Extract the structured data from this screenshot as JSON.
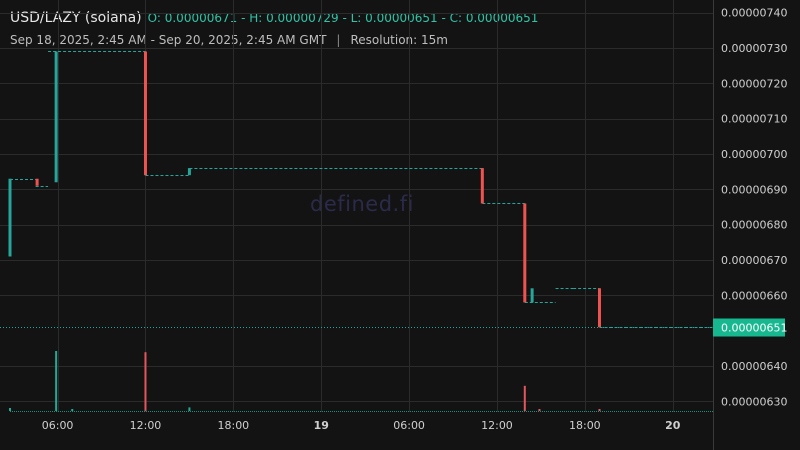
{
  "header": {
    "symbol": "USD/LAZY (solana)",
    "ohlc": "O: 0.00000671 - H: 0.00000729 - L: 0.00000651 - C: 0.00000651",
    "range": "Sep 18, 2025, 2:45 AM - Sep 20, 2025, 2:45 AM GMT",
    "separator": "|",
    "resolution": "Resolution: 15m"
  },
  "watermark": "defined.fi",
  "colors": {
    "background": "#131313",
    "grid": "#2b2b2b",
    "up": "#26a69a",
    "down": "#ef5350",
    "price_tag": "#17b890",
    "volume_up": "#22ab94",
    "volume_down": "#e45560"
  },
  "chart_data": {
    "type": "candlestick",
    "y_axis_position": "right",
    "ylim": [
      6.27e-06,
      7.43e-06
    ],
    "y_ticks": [
      {
        "value": 7.4e-06,
        "label": "0.00000740"
      },
      {
        "value": 7.3e-06,
        "label": "0.00000730"
      },
      {
        "value": 7.2e-06,
        "label": "0.00000720"
      },
      {
        "value": 7.1e-06,
        "label": "0.00000710"
      },
      {
        "value": 7e-06,
        "label": "0.00000700"
      },
      {
        "value": 6.9e-06,
        "label": "0.00000690"
      },
      {
        "value": 6.8e-06,
        "label": "0.00000680"
      },
      {
        "value": 6.7e-06,
        "label": "0.00000670"
      },
      {
        "value": 6.6e-06,
        "label": "0.00000660"
      },
      {
        "value": 6.4e-06,
        "label": "0.00000640"
      },
      {
        "value": 6.3e-06,
        "label": "0.00000630"
      }
    ],
    "x_range_hours": [
      2.75,
      50.75
    ],
    "x_ticks": [
      {
        "hour": 6,
        "label": "06:00",
        "bold": false
      },
      {
        "hour": 12,
        "label": "12:00",
        "bold": false
      },
      {
        "hour": 18,
        "label": "18:00",
        "bold": false
      },
      {
        "hour": 24,
        "label": "19",
        "bold": true
      },
      {
        "hour": 30,
        "label": "06:00",
        "bold": false
      },
      {
        "hour": 36,
        "label": "12:00",
        "bold": false
      },
      {
        "hour": 42,
        "label": "18:00",
        "bold": false
      },
      {
        "hour": 48,
        "label": "20",
        "bold": true
      }
    ],
    "segments": [
      {
        "from": 2.75,
        "to": 4.5,
        "level": 6.93e-06
      },
      {
        "from": 4.5,
        "to": 5.35,
        "level": 6.91e-06
      },
      {
        "from": 5.35,
        "to": 12.0,
        "level": 7.29e-06
      },
      {
        "from": 12.0,
        "to": 15.0,
        "level": 6.94e-06
      },
      {
        "from": 15.0,
        "to": 35.0,
        "level": 6.96e-06
      },
      {
        "from": 35.0,
        "to": 37.9,
        "level": 6.86e-06
      },
      {
        "from": 37.9,
        "to": 40.0,
        "level": 6.58e-06
      },
      {
        "from": 40.0,
        "to": 41.2,
        "level": 6.62e-06
      },
      {
        "from": 41.2,
        "to": 43.0,
        "level": 6.62e-06
      },
      {
        "from": 43.0,
        "to": 50.75,
        "level": 6.51e-06
      }
    ],
    "candles": [
      {
        "t": 2.75,
        "open": 6.71e-06,
        "close": 6.93e-06
      },
      {
        "t": 4.6,
        "open": 6.93e-06,
        "close": 6.91e-06
      },
      {
        "t": 5.9,
        "open": 6.92e-06,
        "close": 7.29e-06
      },
      {
        "t": 12.0,
        "open": 7.29e-06,
        "close": 6.94e-06
      },
      {
        "t": 15.0,
        "open": 6.94e-06,
        "close": 6.96e-06
      },
      {
        "t": 35.0,
        "open": 6.96e-06,
        "close": 6.86e-06
      },
      {
        "t": 37.9,
        "open": 6.86e-06,
        "close": 6.58e-06
      },
      {
        "t": 38.4,
        "open": 6.58e-06,
        "close": 6.62e-06
      },
      {
        "t": 43.0,
        "open": 6.62e-06,
        "close": 6.51e-06
      }
    ],
    "volume": [
      {
        "t": 2.75,
        "level": 0.05,
        "dir": "up"
      },
      {
        "t": 5.9,
        "level": 1.0,
        "dir": "up"
      },
      {
        "t": 7.0,
        "level": 0.02,
        "dir": "up"
      },
      {
        "t": 12.0,
        "level": 0.98,
        "dir": "down"
      },
      {
        "t": 15.0,
        "level": 0.06,
        "dir": "up"
      },
      {
        "t": 37.9,
        "level": 0.42,
        "dir": "down"
      },
      {
        "t": 38.9,
        "level": 0.03,
        "dir": "down"
      },
      {
        "t": 43.0,
        "level": 0.03,
        "dir": "down"
      }
    ],
    "current_price": {
      "value": 6.51e-06,
      "label": "0.00000651"
    }
  }
}
